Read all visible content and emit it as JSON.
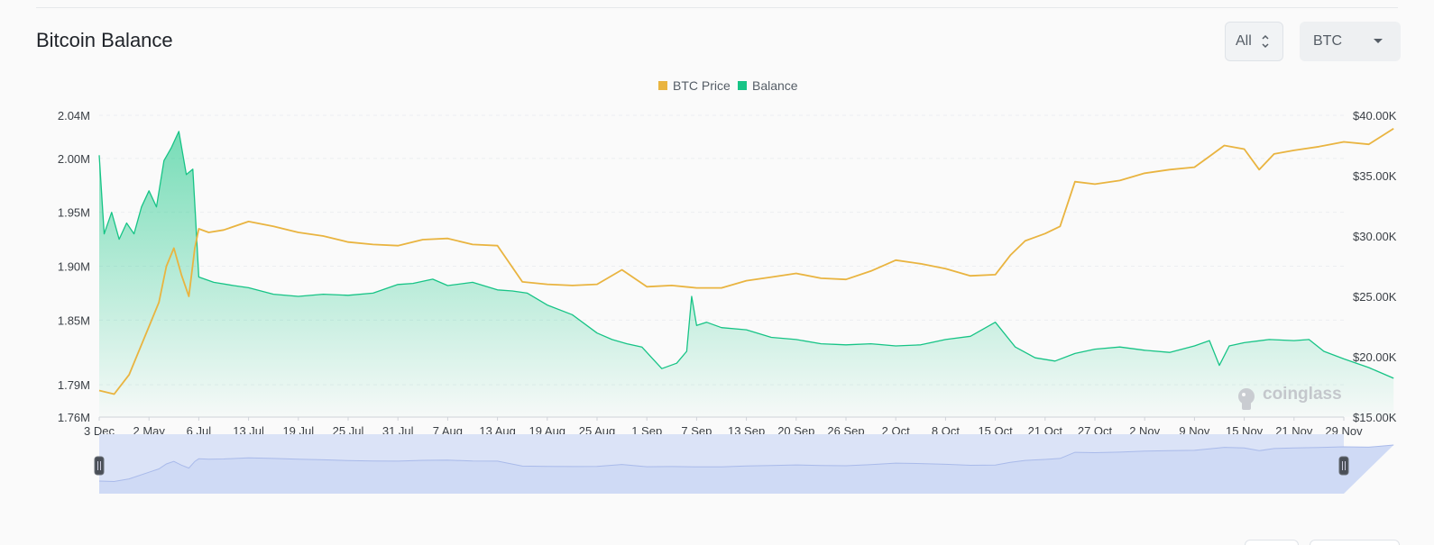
{
  "header": {
    "title": "Bitcoin Balance",
    "range_value": "All",
    "coin_value": "BTC"
  },
  "watermark": "coinglass",
  "colors": {
    "price": "#e9b440",
    "balance": "#17c486",
    "balance_fill_top": "#1fc98a",
    "navigator_fill": "#dbe3f7",
    "navigator_line": "#a9baea"
  },
  "chart_data": {
    "type": "line",
    "legend": {
      "placement": "top-center",
      "items": [
        "BTC Price",
        "Balance"
      ]
    },
    "x_labels": [
      "3 Dec",
      "2 May",
      "6 Jul",
      "13 Jul",
      "19 Jul",
      "25 Jul",
      "31 Jul",
      "7 Aug",
      "13 Aug",
      "19 Aug",
      "25 Aug",
      "1 Sep",
      "7 Sep",
      "13 Sep",
      "20 Sep",
      "26 Sep",
      "2 Oct",
      "8 Oct",
      "15 Oct",
      "21 Oct",
      "27 Oct",
      "2 Nov",
      "9 Nov",
      "15 Nov",
      "21 Nov",
      "29 Nov"
    ],
    "y_left": {
      "ticks": [
        "2.04M",
        "2.00M",
        "1.95M",
        "1.90M",
        "1.85M",
        "1.79M",
        "1.76M"
      ],
      "range": [
        1.76,
        2.04
      ]
    },
    "y_right": {
      "ticks": [
        "$40.00K",
        "$35.00K",
        "$30.00K",
        "$25.00K",
        "$20.00K",
        "$15.00K"
      ],
      "range": [
        15000,
        40000
      ]
    },
    "grid": true,
    "series": [
      {
        "name": "BTC Price",
        "axis": "right",
        "x": [
          0,
          0.3,
          0.6,
          1.0,
          1.2,
          1.35,
          1.5,
          1.65,
          1.8,
          1.92,
          2.0,
          2.2,
          2.5,
          3,
          3.5,
          4,
          4.5,
          5,
          5.5,
          6,
          6.5,
          7,
          7.5,
          8,
          8.5,
          9,
          9.5,
          10,
          10.5,
          11,
          11.5,
          12,
          12.5,
          13,
          13.5,
          14,
          14.5,
          15,
          15.5,
          16,
          16.5,
          17,
          17.5,
          18,
          18.3,
          18.6,
          19,
          19.3,
          19.6,
          20,
          20.5,
          21,
          21.5,
          22,
          22.3,
          22.6,
          23,
          23.3,
          23.6,
          24,
          24.5,
          25,
          25.5,
          26
        ],
        "values": [
          17200,
          16900,
          18500,
          22500,
          24500,
          27500,
          29000,
          26800,
          25000,
          29000,
          30600,
          30300,
          30500,
          31200,
          30800,
          30300,
          30000,
          29500,
          29300,
          29200,
          29700,
          29800,
          29300,
          29200,
          26200,
          26000,
          25900,
          26000,
          27200,
          25800,
          25900,
          25700,
          25700,
          26300,
          26600,
          26900,
          26500,
          26400,
          27100,
          28000,
          27700,
          27300,
          26700,
          26800,
          28400,
          29600,
          30200,
          30800,
          34500,
          34300,
          34600,
          35200,
          35500,
          35700,
          36600,
          37500,
          37200,
          35500,
          36800,
          37100,
          37400,
          37800,
          37600,
          38900
        ]
      },
      {
        "name": "Balance",
        "axis": "left",
        "x": [
          0,
          0.1,
          0.25,
          0.4,
          0.55,
          0.7,
          0.85,
          1.0,
          1.15,
          1.3,
          1.45,
          1.6,
          1.75,
          1.88,
          1.93,
          2.0,
          2.3,
          2.7,
          3,
          3.5,
          4,
          4.5,
          5,
          5.5,
          6,
          6.3,
          6.7,
          7,
          7.5,
          8,
          8.3,
          8.6,
          9,
          9.5,
          10,
          10.3,
          10.6,
          10.9,
          11.1,
          11.3,
          11.6,
          11.8,
          11.9,
          12.0,
          12.2,
          12.5,
          13,
          13.5,
          14,
          14.5,
          15,
          15.5,
          16,
          16.5,
          17,
          17.5,
          18,
          18.4,
          18.8,
          19.2,
          19.6,
          20,
          20.5,
          21,
          21.5,
          22,
          22.3,
          22.5,
          22.7,
          23,
          23.5,
          24,
          24.3,
          24.6,
          25,
          25.5,
          26
        ],
        "values": [
          2.003,
          1.93,
          1.95,
          1.925,
          1.94,
          1.93,
          1.955,
          1.97,
          1.955,
          1.998,
          2.01,
          2.025,
          1.985,
          1.99,
          1.95,
          1.89,
          1.885,
          1.882,
          1.88,
          1.874,
          1.872,
          1.874,
          1.873,
          1.875,
          1.883,
          1.884,
          1.888,
          1.882,
          1.885,
          1.878,
          1.877,
          1.875,
          1.864,
          1.855,
          1.838,
          1.832,
          1.828,
          1.825,
          1.815,
          1.805,
          1.81,
          1.821,
          1.872,
          1.845,
          1.848,
          1.843,
          1.841,
          1.834,
          1.832,
          1.828,
          1.827,
          1.828,
          1.826,
          1.827,
          1.832,
          1.835,
          1.848,
          1.825,
          1.815,
          1.812,
          1.819,
          1.823,
          1.825,
          1.822,
          1.82,
          1.826,
          1.831,
          1.808,
          1.826,
          1.829,
          1.832,
          1.831,
          1.832,
          1.821,
          1.814,
          1.806,
          1.796
        ]
      }
    ]
  }
}
